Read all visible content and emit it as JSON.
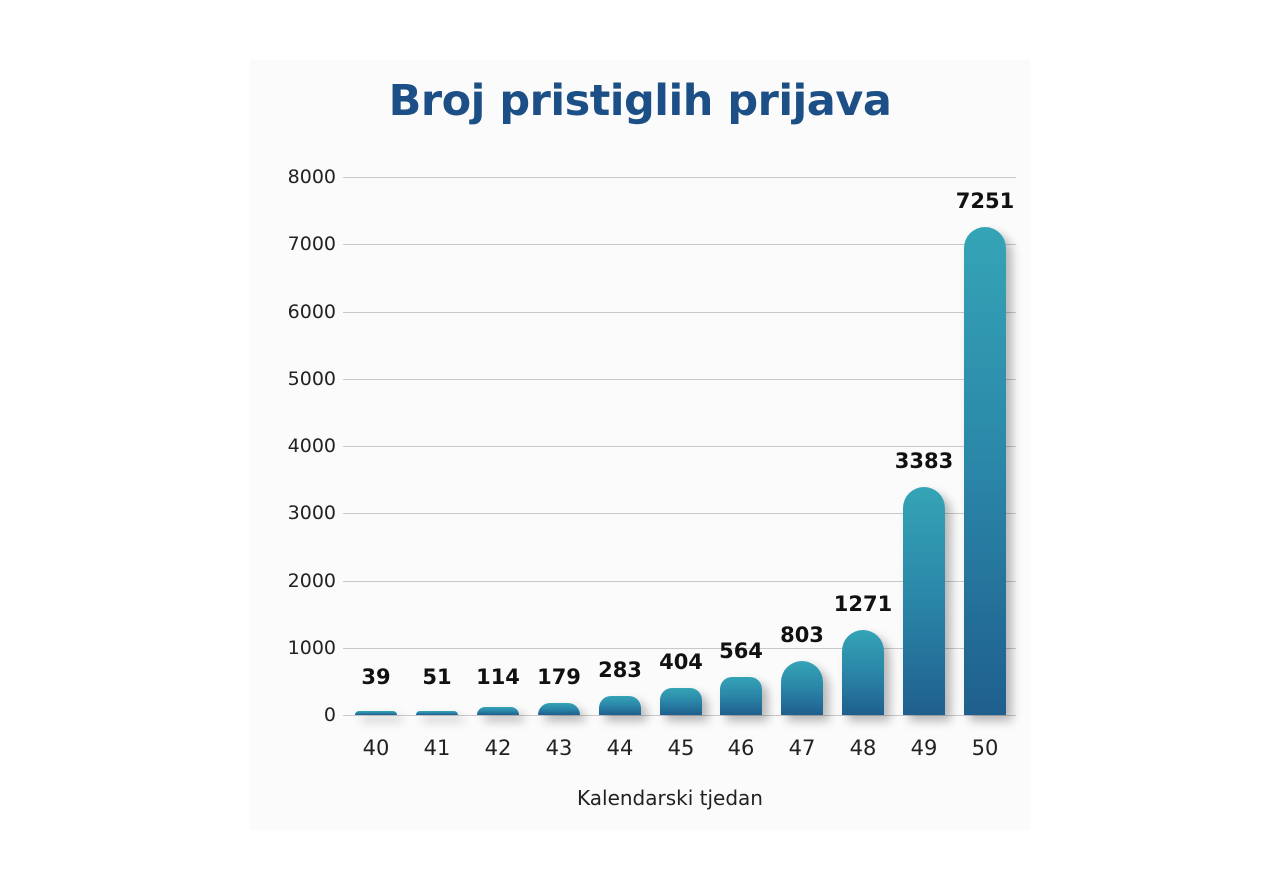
{
  "chart_data": {
    "type": "bar",
    "title": "Broj pristiglih prijava",
    "xlabel": "Kalendarski tjedan",
    "ylabel": "",
    "categories": [
      "40",
      "41",
      "42",
      "43",
      "44",
      "45",
      "46",
      "47",
      "48",
      "49",
      "50"
    ],
    "values": [
      39,
      51,
      114,
      179,
      283,
      404,
      564,
      803,
      1271,
      3383,
      7251
    ],
    "ylim": [
      0,
      8000
    ],
    "yticks": [
      "0",
      "1000",
      "2000",
      "3000",
      "4000",
      "5000",
      "6000",
      "7000",
      "8000"
    ],
    "grid": true,
    "legend": null,
    "bar_color_top": "#35a4b6",
    "bar_color_bottom": "#1f5f8e",
    "title_color": "#1b4f86"
  }
}
